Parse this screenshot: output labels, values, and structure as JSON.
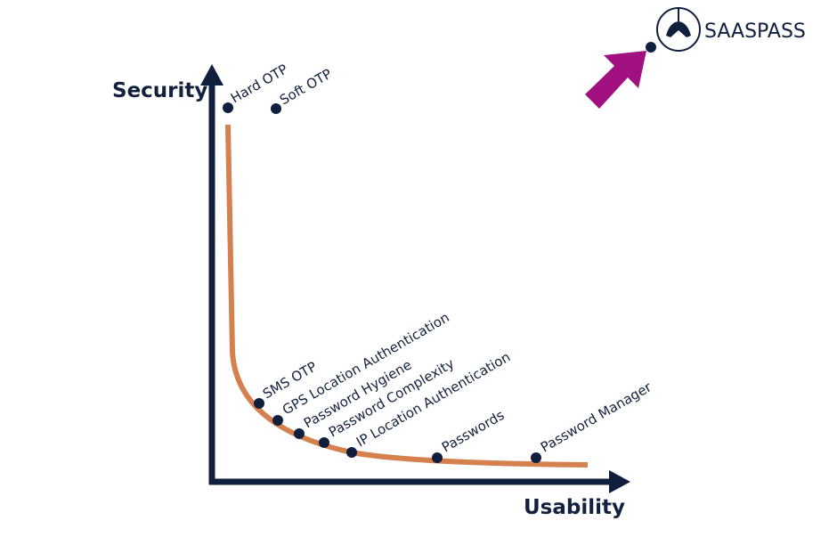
{
  "axes": {
    "y_label": "Security",
    "x_label": "Usability"
  },
  "points": [
    {
      "label": "Hard OTP"
    },
    {
      "label": "Soft OTP"
    },
    {
      "label": "SMS OTP"
    },
    {
      "label": "GPS Location Authentication"
    },
    {
      "label": "Password Hygiene"
    },
    {
      "label": "Password Complexity"
    },
    {
      "label": "IP Location Authentication"
    },
    {
      "label": "Passwords"
    },
    {
      "label": "Password Manager"
    }
  ],
  "logo": {
    "text": "SAASPASS"
  }
}
